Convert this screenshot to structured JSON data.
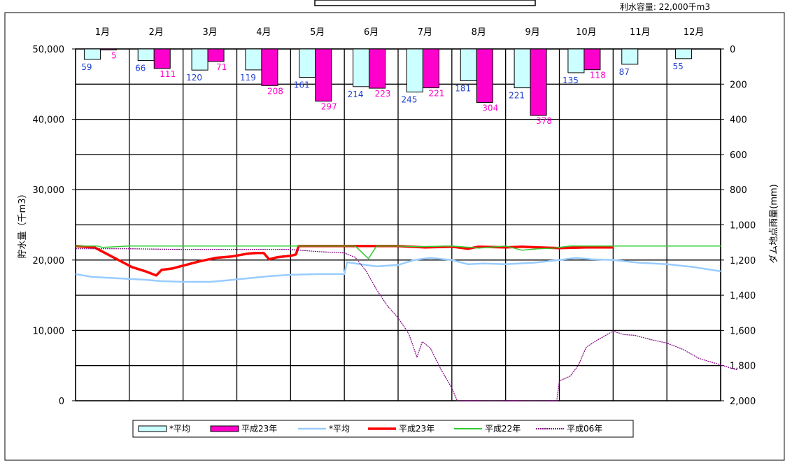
{
  "chart_data": {
    "type": "bar+line",
    "capacity_note": "利水容量: 22,000千m3",
    "ylabel_left": "貯水量（千m3）",
    "ylabel_right": "ダム地点雨量(mm)",
    "ylim_left": [
      0,
      50000
    ],
    "ylim_right": [
      2000,
      0
    ],
    "yticks_left": [
      "0",
      "10,000",
      "20,000",
      "30,000",
      "40,000",
      "50,000"
    ],
    "yticks_right": [
      "0",
      "200",
      "400",
      "600",
      "800",
      "1,000",
      "1,200",
      "1,400",
      "1,600",
      "1,800",
      "2,000"
    ],
    "categories": [
      "1月",
      "2月",
      "3月",
      "4月",
      "5月",
      "6月",
      "7月",
      "8月",
      "9月",
      "10月",
      "11月",
      "12月"
    ],
    "bar_series": [
      {
        "name": "*平均",
        "color": "#ccffff",
        "label_color": "#1f3fd0",
        "values": [
          59,
          66,
          120,
          119,
          161,
          214,
          245,
          181,
          221,
          135,
          87,
          55
        ]
      },
      {
        "name": "平成23年",
        "color": "#ff00cc",
        "label_color": "#ff00cc",
        "values": [
          5,
          111,
          71,
          208,
          297,
          223,
          221,
          304,
          378,
          118,
          null,
          null
        ]
      }
    ],
    "line_series": [
      {
        "name": "*平均",
        "color": "#99ccff",
        "width": 2.5,
        "points": [
          [
            0,
            18000
          ],
          [
            0.3,
            17600
          ],
          [
            0.8,
            17400
          ],
          [
            1.3,
            17200
          ],
          [
            1.6,
            17000
          ],
          [
            2,
            16900
          ],
          [
            2.5,
            16900
          ],
          [
            2.8,
            17100
          ],
          [
            3.2,
            17400
          ],
          [
            3.6,
            17700
          ],
          [
            4,
            17900
          ],
          [
            4.5,
            18000
          ],
          [
            5,
            18000
          ],
          [
            5.05,
            19700
          ],
          [
            5.3,
            19400
          ],
          [
            5.6,
            19100
          ],
          [
            6,
            19300
          ],
          [
            6.3,
            20000
          ],
          [
            6.6,
            20300
          ],
          [
            7,
            20000
          ],
          [
            7.3,
            19400
          ],
          [
            7.6,
            19500
          ],
          [
            8,
            19400
          ],
          [
            8.5,
            19600
          ],
          [
            9,
            20000
          ],
          [
            9.3,
            20300
          ],
          [
            9.6,
            20100
          ],
          [
            10,
            20000
          ],
          [
            10.5,
            19600
          ],
          [
            11,
            19400
          ],
          [
            11.5,
            19000
          ],
          [
            12,
            18400
          ]
        ]
      },
      {
        "name": "平成23年",
        "color": "#ff0000",
        "width": 3.5,
        "points": [
          [
            0,
            22000
          ],
          [
            0.35,
            21800
          ],
          [
            0.6,
            20800
          ],
          [
            0.85,
            19800
          ],
          [
            1.05,
            19000
          ],
          [
            1.3,
            18400
          ],
          [
            1.5,
            17800
          ],
          [
            1.6,
            18600
          ],
          [
            1.8,
            18800
          ],
          [
            2,
            19200
          ],
          [
            2.3,
            19800
          ],
          [
            2.6,
            20300
          ],
          [
            2.9,
            20500
          ],
          [
            3.2,
            20900
          ],
          [
            3.35,
            21000
          ],
          [
            3.5,
            21000
          ],
          [
            3.6,
            20100
          ],
          [
            3.75,
            20400
          ],
          [
            4.0,
            20600
          ],
          [
            4.1,
            20800
          ],
          [
            4.15,
            22000
          ],
          [
            5,
            22000
          ],
          [
            5.5,
            22000
          ],
          [
            6,
            22000
          ],
          [
            6.5,
            21800
          ],
          [
            7,
            21900
          ],
          [
            7.3,
            21600
          ],
          [
            7.5,
            21900
          ],
          [
            8,
            21800
          ],
          [
            8.3,
            21900
          ],
          [
            8.6,
            21800
          ],
          [
            9,
            21700
          ],
          [
            9.5,
            21800
          ],
          [
            10,
            21800
          ]
        ]
      },
      {
        "name": "平成22年",
        "color": "#33cc33",
        "width": 1.5,
        "points": [
          [
            0,
            22000
          ],
          [
            0.4,
            22000
          ],
          [
            0.5,
            21800
          ],
          [
            1,
            22000
          ],
          [
            2,
            22000
          ],
          [
            3,
            22000
          ],
          [
            4,
            22000
          ],
          [
            5,
            22000
          ],
          [
            5.2,
            22000
          ],
          [
            5.45,
            20200
          ],
          [
            5.6,
            22000
          ],
          [
            6,
            22000
          ],
          [
            6.4,
            21900
          ],
          [
            7,
            22000
          ],
          [
            7.5,
            21700
          ],
          [
            8,
            22000
          ],
          [
            8.3,
            21400
          ],
          [
            8.6,
            21600
          ],
          [
            8.9,
            21700
          ],
          [
            9.2,
            22000
          ],
          [
            10,
            22000
          ],
          [
            11,
            22000
          ],
          [
            12,
            22000
          ]
        ]
      },
      {
        "name": "平成06年",
        "color": "#800080",
        "width": 1.2,
        "dotted": true,
        "points": [
          [
            0,
            21600
          ],
          [
            1,
            21600
          ],
          [
            2,
            21500
          ],
          [
            3,
            21500
          ],
          [
            4,
            21500
          ],
          [
            4.5,
            21200
          ],
          [
            5,
            21000
          ],
          [
            5.2,
            20400
          ],
          [
            5.4,
            18500
          ],
          [
            5.6,
            15800
          ],
          [
            5.8,
            13500
          ],
          [
            6,
            11800
          ],
          [
            6.2,
            9500
          ],
          [
            6.35,
            6200
          ],
          [
            6.45,
            8400
          ],
          [
            6.6,
            7500
          ],
          [
            6.8,
            4400
          ],
          [
            7,
            1800
          ],
          [
            7.1,
            0
          ],
          [
            8,
            0
          ],
          [
            8.95,
            0
          ],
          [
            9.0,
            2800
          ],
          [
            9.2,
            3500
          ],
          [
            9.35,
            5000
          ],
          [
            9.5,
            7600
          ],
          [
            9.7,
            8600
          ],
          [
            10,
            9900
          ],
          [
            10.2,
            9400
          ],
          [
            10.4,
            9300
          ],
          [
            10.7,
            8700
          ],
          [
            11,
            8200
          ],
          [
            11.3,
            7300
          ],
          [
            11.6,
            6000
          ],
          [
            12,
            5100
          ],
          [
            12.3,
            4400
          ]
        ]
      }
    ],
    "legend": [
      "*平均",
      "平成23年",
      "*平均",
      "平成23年",
      "平成22年",
      "平成06年"
    ]
  }
}
